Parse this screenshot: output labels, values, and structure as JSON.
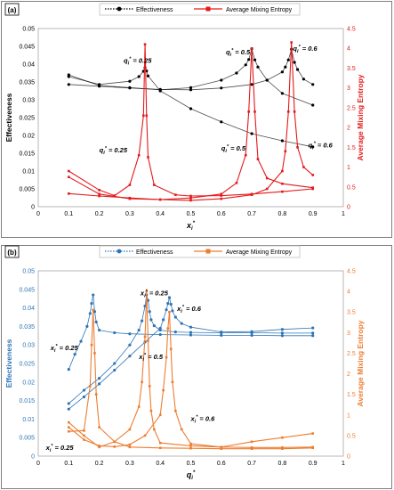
{
  "chart_data": [
    {
      "panel_label": "(a)",
      "type": "line",
      "legend": {
        "placement": "top-center",
        "entries": [
          "Effectiveness",
          "Average Mixing Entropy"
        ]
      },
      "xlabel": "x_i*",
      "xlabel_main": "x",
      "xlabel_sub": "i",
      "xlabel_sup": "*",
      "ylabel_left": "Effectiveness",
      "ylabel_right": "Average Mixing Entropy",
      "xlim": [
        0,
        1
      ],
      "xticks": [
        "0",
        "0.1",
        "0.2",
        "0.3",
        "0.4",
        "0.5",
        "0.6",
        "0.7",
        "0.8",
        "0.9",
        "1"
      ],
      "ylim_left": [
        0,
        0.05
      ],
      "yticks_left": [
        "0",
        "0.005",
        "0.01",
        "0.015",
        "0.02",
        "0.025",
        "0.03",
        "0.035",
        "0.04",
        "0.045",
        "0.05"
      ],
      "ylim_right": [
        0,
        4.5
      ],
      "yticks_right": [
        "0",
        "0.5",
        "1",
        "1.5",
        "2",
        "2.5",
        "3",
        "3.5",
        "4",
        "4.5"
      ],
      "colors": {
        "effectiveness": "#000000",
        "entropy": "#e31a1c"
      },
      "annotations": [
        {
          "text": "q_i* = 0.25",
          "x": 0.28,
          "y_left": 0.0404
        },
        {
          "text": "q_i* = 0.5",
          "x": 0.615,
          "y_left": 0.0428
        },
        {
          "text": "q_i* = 0.6",
          "x": 0.835,
          "y_left": 0.0438
        },
        {
          "text": "q_i* = 0.25",
          "x": 0.2,
          "y_left": 0.0152
        },
        {
          "text": "q_i* = 0.5",
          "x": 0.6,
          "y_left": 0.0158
        },
        {
          "text": "q_i* = 0.6",
          "x": 0.885,
          "y_left": 0.0166
        }
      ],
      "series": [
        {
          "name": "Effectiveness",
          "axis": "left",
          "group": "q=0.25",
          "x": [
            0.1,
            0.2,
            0.3,
            0.33,
            0.345,
            0.35,
            0.355,
            0.36,
            0.4,
            0.5,
            0.6,
            0.7,
            0.8,
            0.9
          ],
          "y": [
            0.0365,
            0.0343,
            0.0352,
            0.0365,
            0.038,
            0.039,
            0.0381,
            0.0367,
            0.0325,
            0.0275,
            0.0238,
            0.0205,
            0.0185,
            0.0168
          ]
        },
        {
          "name": "Effectiveness",
          "axis": "left",
          "group": "q=0.5",
          "x": [
            0.1,
            0.2,
            0.3,
            0.4,
            0.5,
            0.6,
            0.65,
            0.68,
            0.69,
            0.7,
            0.71,
            0.72,
            0.75,
            0.8,
            0.9
          ],
          "y": [
            0.037,
            0.034,
            0.0334,
            0.0328,
            0.0334,
            0.0355,
            0.0375,
            0.0398,
            0.0413,
            0.0443,
            0.0412,
            0.0392,
            0.0355,
            0.0318,
            0.0285
          ]
        },
        {
          "name": "Effectiveness",
          "axis": "left",
          "group": "q=0.6",
          "x": [
            0.1,
            0.2,
            0.3,
            0.4,
            0.5,
            0.6,
            0.7,
            0.75,
            0.8,
            0.81,
            0.82,
            0.83,
            0.84,
            0.85,
            0.87,
            0.9
          ],
          "y": [
            0.0343,
            0.0338,
            0.0333,
            0.0329,
            0.0328,
            0.0333,
            0.0343,
            0.0355,
            0.0378,
            0.0392,
            0.0412,
            0.0442,
            0.0405,
            0.0385,
            0.0358,
            0.0343
          ]
        },
        {
          "name": "Average Mixing Entropy",
          "axis": "right",
          "group": "q=0.25",
          "x": [
            0.1,
            0.2,
            0.25,
            0.3,
            0.33,
            0.345,
            0.35,
            0.355,
            0.36,
            0.38,
            0.45,
            0.5,
            0.6,
            0.7,
            0.8,
            0.9
          ],
          "y": [
            0.9,
            0.42,
            0.28,
            0.55,
            1.3,
            2.3,
            4.1,
            2.3,
            1.25,
            0.55,
            0.3,
            0.27,
            0.28,
            0.32,
            0.38,
            0.45
          ]
        },
        {
          "name": "Average Mixing Entropy",
          "axis": "right",
          "group": "q=0.5",
          "x": [
            0.1,
            0.2,
            0.3,
            0.4,
            0.5,
            0.6,
            0.65,
            0.68,
            0.69,
            0.7,
            0.71,
            0.72,
            0.75,
            0.8,
            0.9
          ],
          "y": [
            0.75,
            0.32,
            0.2,
            0.18,
            0.22,
            0.32,
            0.6,
            1.3,
            2.4,
            4.0,
            2.4,
            1.2,
            0.72,
            0.58,
            0.48
          ]
        },
        {
          "name": "Average Mixing Entropy",
          "axis": "right",
          "group": "q=0.6",
          "x": [
            0.1,
            0.2,
            0.3,
            0.4,
            0.5,
            0.6,
            0.7,
            0.75,
            0.8,
            0.81,
            0.82,
            0.83,
            0.84,
            0.85,
            0.87,
            0.9
          ],
          "y": [
            0.33,
            0.27,
            0.22,
            0.18,
            0.16,
            0.2,
            0.3,
            0.45,
            0.9,
            1.4,
            2.4,
            4.15,
            2.4,
            1.5,
            1.0,
            0.8
          ]
        }
      ]
    },
    {
      "panel_label": "(b)",
      "type": "line",
      "legend": {
        "placement": "top-center",
        "entries": [
          "Effectiveness",
          "Average Mixing Entropy"
        ]
      },
      "xlabel": "q_i*",
      "xlabel_main": "q",
      "xlabel_sub": "i",
      "xlabel_sup": "*",
      "ylabel_left": "Effectiveness",
      "ylabel_right": "Average Mixing Entropy",
      "xlim": [
        0,
        1
      ],
      "xticks": [
        "0",
        "0.1",
        "0.2",
        "0.3",
        "0.4",
        "0.5",
        "0.6",
        "0.7",
        "0.8",
        "0.9",
        "1"
      ],
      "ylim_left": [
        0,
        0.05
      ],
      "yticks_left": [
        "0",
        "0.005",
        "0.01",
        "0.015",
        "0.02",
        "0.025",
        "0.03",
        "0.035",
        "0.04",
        "0.045",
        "0.05"
      ],
      "ylim_right": [
        0,
        4.5
      ],
      "yticks_right": [
        "0",
        "0.5",
        "1",
        "1.5",
        "2",
        "2.5",
        "3",
        "3.5",
        "4",
        "4.5"
      ],
      "colors": {
        "effectiveness": "#2e75b6",
        "entropy": "#ed7d31"
      },
      "annotations": [
        {
          "text": "x_i* = 0.25",
          "x": 0.04,
          "y_left": 0.0286
        },
        {
          "text": "x_i* = 0.25",
          "x": 0.335,
          "y_left": 0.0434
        },
        {
          "text": "x_i* = 0.6",
          "x": 0.455,
          "y_left": 0.0392
        },
        {
          "text": "x_i* = 0.5",
          "x": 0.33,
          "y_left": 0.0262
        },
        {
          "text": "x_i* = 0.6",
          "x": 0.5,
          "y_left": 0.0095
        },
        {
          "text": "x_i* = 0.25",
          "x": 0.025,
          "y_left": 0.0017
        }
      ],
      "series": [
        {
          "name": "Effectiveness",
          "axis": "left",
          "group": "x=0.25",
          "x": [
            0.1,
            0.12,
            0.14,
            0.16,
            0.17,
            0.175,
            0.18,
            0.185,
            0.19,
            0.2,
            0.25,
            0.3,
            0.4,
            0.5,
            0.6,
            0.7,
            0.8,
            0.9
          ],
          "y": [
            0.0234,
            0.0275,
            0.031,
            0.035,
            0.0385,
            0.0412,
            0.0435,
            0.039,
            0.0362,
            0.034,
            0.0333,
            0.033,
            0.0328,
            0.0327,
            0.0326,
            0.0326,
            0.0325,
            0.0325
          ]
        },
        {
          "name": "Effectiveness",
          "axis": "left",
          "group": "x=0.5",
          "x": [
            0.1,
            0.15,
            0.2,
            0.25,
            0.3,
            0.33,
            0.34,
            0.35,
            0.355,
            0.36,
            0.365,
            0.37,
            0.38,
            0.4,
            0.45,
            0.5,
            0.6,
            0.7,
            0.8,
            0.9
          ],
          "y": [
            0.0142,
            0.0178,
            0.021,
            0.025,
            0.03,
            0.034,
            0.0365,
            0.0405,
            0.0435,
            0.042,
            0.039,
            0.0368,
            0.0352,
            0.034,
            0.0335,
            0.0334,
            0.0333,
            0.0333,
            0.0332,
            0.0332
          ]
        },
        {
          "name": "Effectiveness",
          "axis": "left",
          "group": "x=0.6",
          "x": [
            0.1,
            0.15,
            0.2,
            0.25,
            0.3,
            0.35,
            0.4,
            0.41,
            0.42,
            0.425,
            0.43,
            0.435,
            0.44,
            0.45,
            0.47,
            0.5,
            0.6,
            0.7,
            0.8,
            0.9
          ],
          "y": [
            0.0127,
            0.016,
            0.0195,
            0.0232,
            0.027,
            0.0308,
            0.0345,
            0.0368,
            0.0395,
            0.0412,
            0.0428,
            0.041,
            0.0392,
            0.0375,
            0.0358,
            0.0348,
            0.0335,
            0.0336,
            0.0342,
            0.0346
          ]
        },
        {
          "name": "Average Mixing Entropy",
          "axis": "right",
          "group": "x=0.25",
          "x": [
            0.1,
            0.15,
            0.17,
            0.175,
            0.18,
            0.185,
            0.19,
            0.2,
            0.25,
            0.3,
            0.4,
            0.5,
            0.6,
            0.7,
            0.8,
            0.9
          ],
          "y": [
            0.6,
            0.62,
            1.7,
            2.7,
            3.55,
            2.5,
            1.5,
            0.7,
            0.35,
            0.22,
            0.2,
            0.19,
            0.18,
            0.18,
            0.18,
            0.2
          ]
        },
        {
          "name": "Average Mixing Entropy",
          "axis": "right",
          "group": "x=0.5",
          "x": [
            0.1,
            0.15,
            0.2,
            0.25,
            0.3,
            0.33,
            0.34,
            0.35,
            0.355,
            0.36,
            0.365,
            0.37,
            0.38,
            0.4,
            0.5,
            0.6,
            0.7,
            0.8,
            0.9
          ],
          "y": [
            0.82,
            0.5,
            0.22,
            0.35,
            0.65,
            1.2,
            1.8,
            2.9,
            4.0,
            2.8,
            1.7,
            1.1,
            0.65,
            0.32,
            0.25,
            0.22,
            0.21,
            0.21,
            0.22
          ]
        },
        {
          "name": "Average Mixing Entropy",
          "axis": "right",
          "group": "x=0.6",
          "x": [
            0.1,
            0.15,
            0.2,
            0.25,
            0.3,
            0.35,
            0.4,
            0.41,
            0.42,
            0.425,
            0.43,
            0.435,
            0.44,
            0.45,
            0.47,
            0.5,
            0.6,
            0.7,
            0.8,
            0.9
          ],
          "y": [
            0.7,
            0.4,
            0.25,
            0.23,
            0.28,
            0.5,
            1.0,
            1.6,
            2.4,
            3.1,
            3.5,
            2.6,
            1.8,
            1.1,
            0.65,
            0.3,
            0.22,
            0.35,
            0.45,
            0.55
          ]
        }
      ]
    }
  ]
}
